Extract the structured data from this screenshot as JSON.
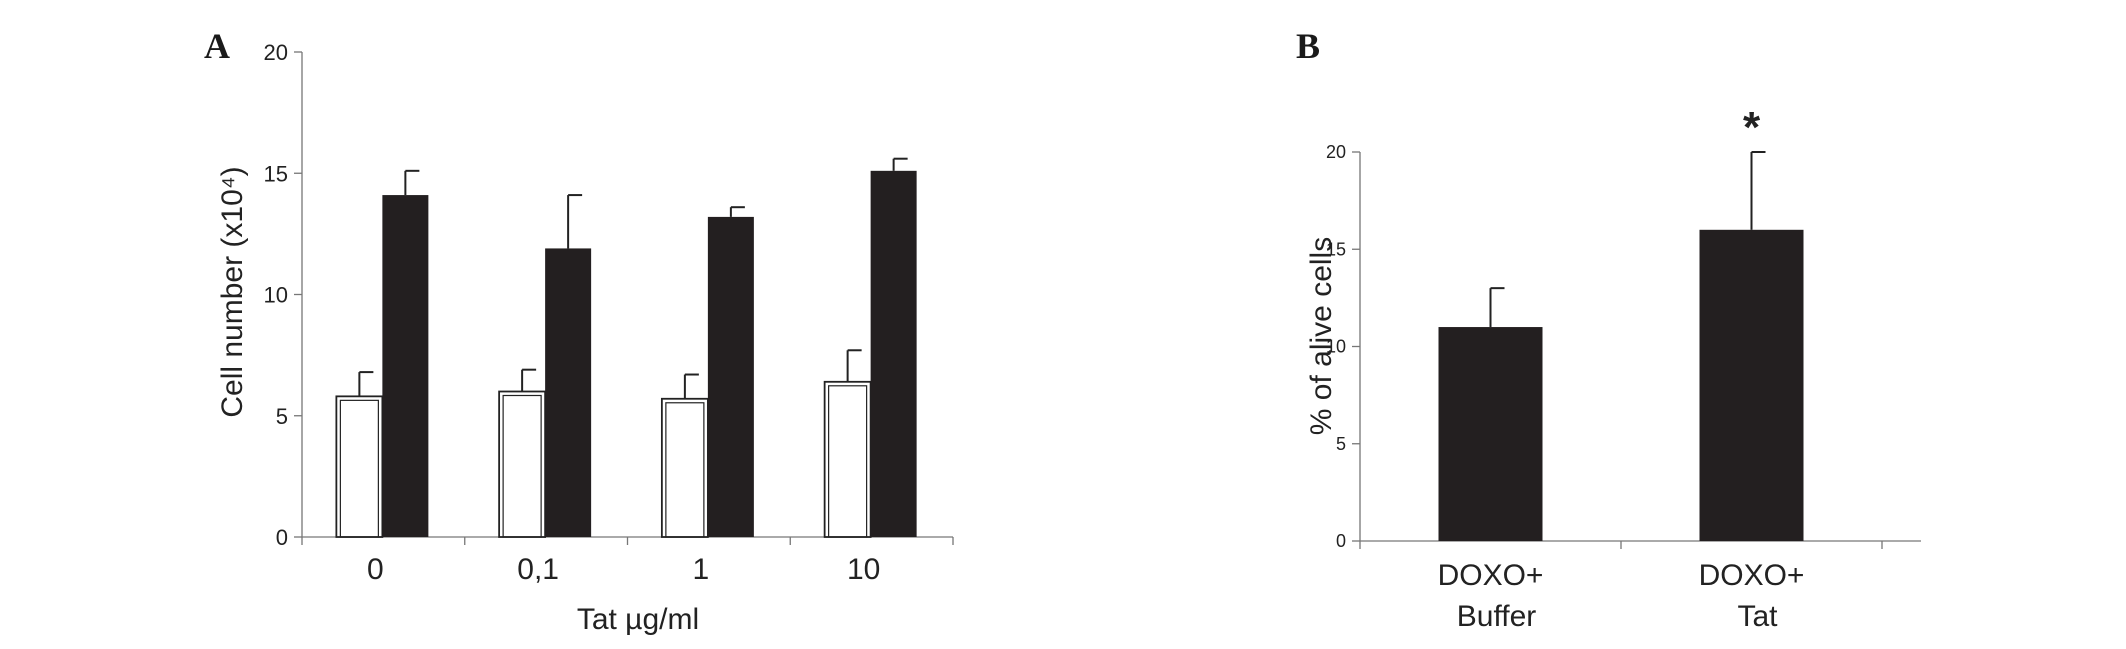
{
  "chart_data": [
    {
      "type": "bar",
      "panel_label": "A",
      "categories": [
        "0",
        "0,1",
        "1",
        "10"
      ],
      "series": [
        {
          "values": [
            5.8,
            6.0,
            5.7,
            6.4
          ],
          "errors": [
            1.0,
            0.9,
            1.0,
            1.3
          ],
          "fill": "white-outline"
        },
        {
          "values": [
            14.1,
            11.9,
            13.2,
            15.1
          ],
          "errors": [
            1.0,
            2.2,
            0.4,
            0.5
          ],
          "fill": "#231f20"
        }
      ],
      "xlabel": "Tat µg/ml",
      "ylabel": "Cell number (x10⁴)",
      "ylim": [
        0,
        20
      ],
      "yticks": [
        "0",
        "5",
        "10",
        "15",
        "20"
      ],
      "grid": false,
      "legend": "none"
    },
    {
      "type": "bar",
      "panel_label": "B",
      "categories": [
        [
          "DOXO+",
          "Buffer"
        ],
        [
          "DOXO+",
          "Tat"
        ]
      ],
      "series": [
        {
          "values": [
            11,
            16
          ],
          "errors": [
            2,
            4
          ],
          "fill": "#231f20"
        }
      ],
      "annotations": [
        {
          "category": 1,
          "text": "*"
        }
      ],
      "ylabel": "% of alive cells",
      "ylim": [
        0,
        20
      ],
      "yticks": [
        "0",
        "5",
        "10",
        "15",
        "20"
      ],
      "grid": false,
      "legend": "none"
    }
  ]
}
